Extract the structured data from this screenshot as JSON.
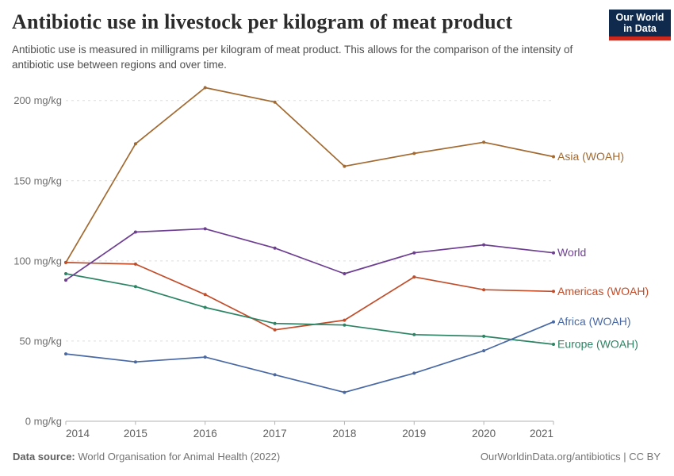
{
  "header": {
    "title": "Antibiotic use in livestock per kilogram of meat product",
    "subtitle": "Antibiotic use is measured in milligrams per kilogram of meat product. This allows for the comparison of the intensity of antibiotic use between regions and over time.",
    "logo": {
      "line1": "Our World",
      "line2": "in Data"
    }
  },
  "chart_data": {
    "type": "line",
    "title": "Antibiotic use in livestock per kilogram of meat product",
    "unit": "mg/kg",
    "x": [
      2014,
      2015,
      2016,
      2017,
      2018,
      2019,
      2020,
      2021
    ],
    "series": [
      {
        "name": "Asia (WOAH)",
        "color": "#A26A31",
        "values": [
          99,
          173,
          208,
          199,
          159,
          167,
          174,
          165
        ]
      },
      {
        "name": "Americas (WOAH)",
        "color": "#C14D2A",
        "values": [
          99,
          98,
          79,
          57,
          63,
          90,
          82,
          81
        ]
      },
      {
        "name": "Europe (WOAH)",
        "color": "#2C8465",
        "values": [
          92,
          84,
          71,
          61,
          60,
          54,
          53,
          48
        ]
      },
      {
        "name": "Africa (WOAH)",
        "color": "#4969A5",
        "values": [
          42,
          37,
          40,
          29,
          18,
          30,
          44,
          62
        ]
      },
      {
        "name": "World",
        "color": "#6D3E91",
        "values": [
          88,
          118,
          120,
          108,
          92,
          105,
          110,
          105
        ]
      }
    ],
    "ylim": [
      0,
      200
    ],
    "y_ticks": [
      {
        "value": 0,
        "label": "0 mg/kg"
      },
      {
        "value": 50,
        "label": "50 mg/kg"
      },
      {
        "value": 100,
        "label": "100 mg/kg"
      },
      {
        "value": 150,
        "label": "150 mg/kg"
      },
      {
        "value": 200,
        "label": "200 mg/kg"
      }
    ],
    "x_ticks": [
      "2014",
      "2015",
      "2016",
      "2017",
      "2018",
      "2019",
      "2020",
      "2021"
    ],
    "grid": "horizontal-dashed",
    "legend_position": "right-of-line-ends"
  },
  "footer": {
    "source_label": "Data source:",
    "source_text": "World Organisation for Animal Health (2022)",
    "rights": "OurWorldinData.org/antibiotics | CC BY"
  },
  "colors": {
    "logo_bg": "#102A4D",
    "logo_accent": "#CD281C",
    "gridline": "#DEDEDE",
    "axis": "#B3B3B3",
    "axis_text": "#6E6E6E"
  }
}
